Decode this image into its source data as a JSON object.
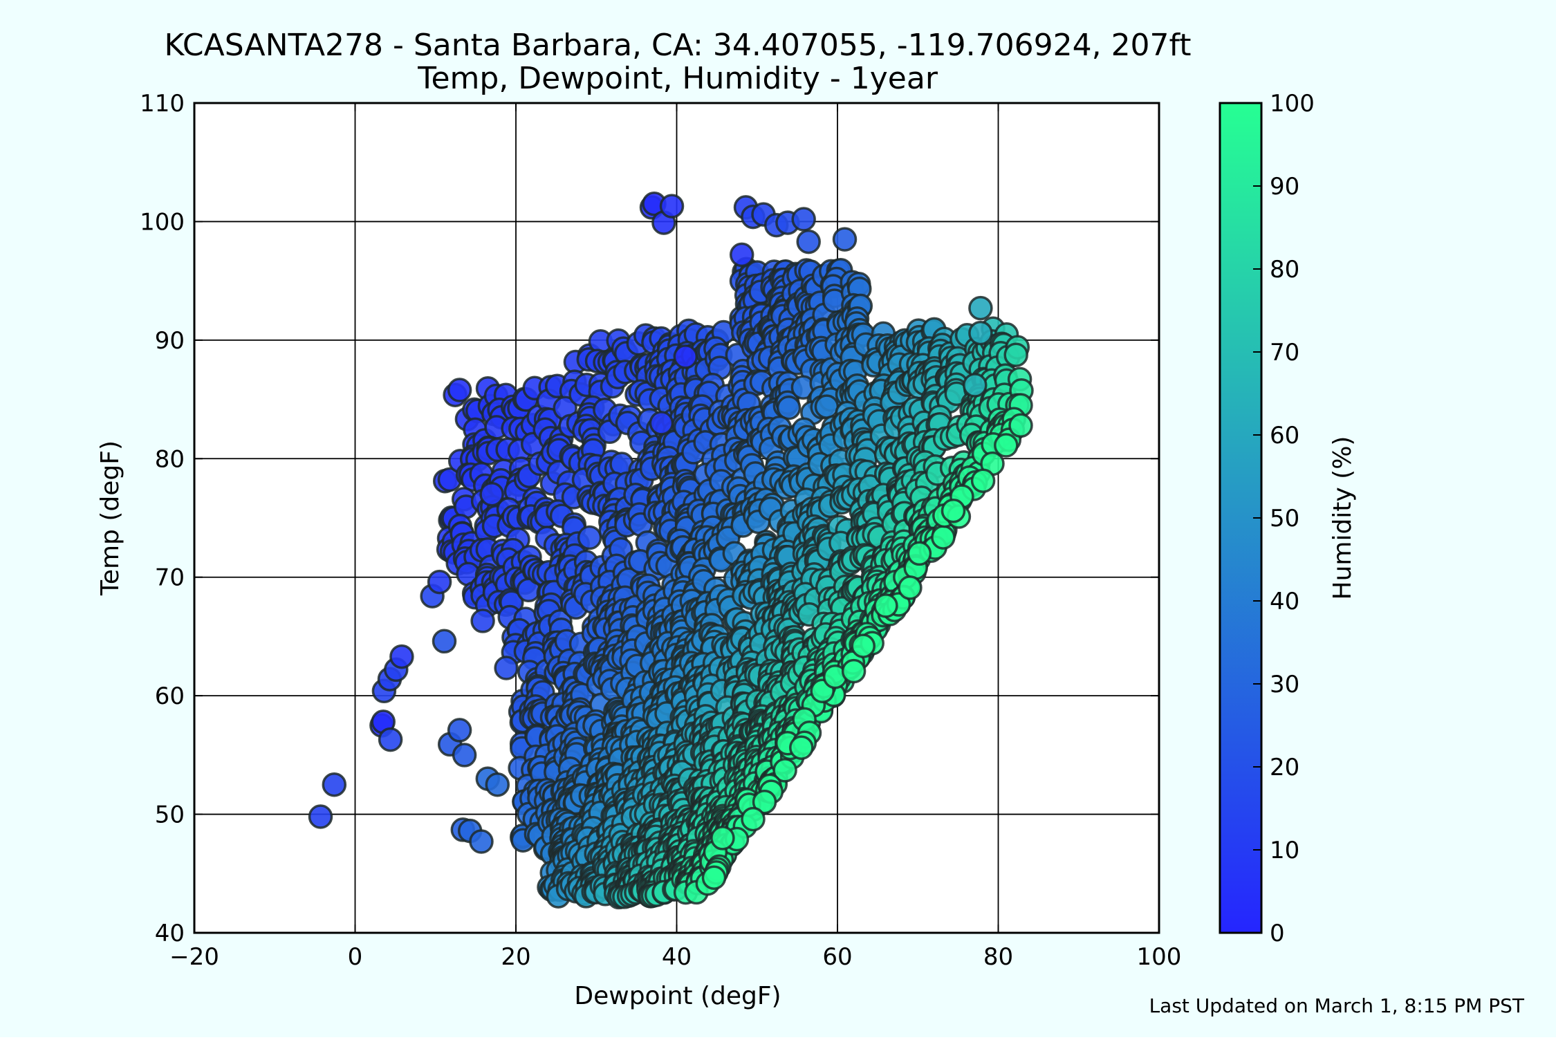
{
  "page": {
    "background": "#efffff",
    "footer": "Last Updated on March 1, 8:15 PM PST"
  },
  "chart_data": {
    "type": "scatter",
    "title": "KCASANTA278 - Santa Barbara, CA: 34.407055, -119.706924, 207ft",
    "subtitle": "Temp, Dewpoint, Humidity - 1year",
    "xlabel": "Dewpoint (degF)",
    "ylabel": "Temp (degF)",
    "xlim": [
      -20,
      100
    ],
    "ylim": [
      40,
      110
    ],
    "xticks": [
      -20,
      0,
      20,
      40,
      60,
      80,
      100
    ],
    "xtick_labels": [
      "−20",
      "0",
      "20",
      "40",
      "60",
      "80",
      "100"
    ],
    "yticks": [
      40,
      50,
      60,
      70,
      80,
      90,
      100,
      110
    ],
    "ytick_labels": [
      "40",
      "50",
      "60",
      "70",
      "80",
      "90",
      "100",
      "110"
    ],
    "grid": true,
    "color_by": "humidity",
    "colorbar": {
      "label": "Humidity (%)",
      "range": [
        0,
        100
      ],
      "ticks": [
        0,
        10,
        20,
        30,
        40,
        50,
        60,
        70,
        80,
        90,
        100
      ],
      "colormap": [
        "#2525ff",
        "#26ff93"
      ]
    },
    "marker_edge_color": "#1f2a2a",
    "points": [
      {
        "x": -4.3,
        "y": 49.8,
        "h": 13
      },
      {
        "x": -2.6,
        "y": 52.5,
        "h": 14
      },
      {
        "x": 3.3,
        "y": 57.5,
        "h": 4
      },
      {
        "x": 3.5,
        "y": 57.8,
        "h": 4
      },
      {
        "x": 4.4,
        "y": 56.3,
        "h": 15
      },
      {
        "x": 3.6,
        "y": 60.4,
        "h": 14
      },
      {
        "x": 4.3,
        "y": 61.4,
        "h": 13
      },
      {
        "x": 5.1,
        "y": 62.2,
        "h": 13
      },
      {
        "x": 5.8,
        "y": 63.3,
        "h": 8
      },
      {
        "x": 9.6,
        "y": 68.4,
        "h": 16
      },
      {
        "x": 10.5,
        "y": 69.6,
        "h": 10
      },
      {
        "x": 11.1,
        "y": 64.6,
        "h": 22
      },
      {
        "x": 11.8,
        "y": 55.9,
        "h": 24
      },
      {
        "x": 13.0,
        "y": 57.1,
        "h": 23
      },
      {
        "x": 13.6,
        "y": 55.0,
        "h": 25
      },
      {
        "x": 13.4,
        "y": 48.7,
        "h": 27
      },
      {
        "x": 14.3,
        "y": 48.6,
        "h": 30
      },
      {
        "x": 15.7,
        "y": 47.7,
        "h": 30
      },
      {
        "x": 16.5,
        "y": 53.0,
        "h": 32
      },
      {
        "x": 17.0,
        "y": 77.0,
        "h": 10
      },
      {
        "x": 17.7,
        "y": 52.5,
        "h": 32
      },
      {
        "x": 36.9,
        "y": 101.2,
        "h": 5
      },
      {
        "x": 37.2,
        "y": 101.5,
        "h": 4
      },
      {
        "x": 38.4,
        "y": 99.9,
        "h": 6
      },
      {
        "x": 39.4,
        "y": 101.3,
        "h": 6
      },
      {
        "x": 48.6,
        "y": 101.2,
        "h": 12
      },
      {
        "x": 49.5,
        "y": 100.4,
        "h": 14
      },
      {
        "x": 50.8,
        "y": 100.6,
        "h": 15
      },
      {
        "x": 52.4,
        "y": 99.7,
        "h": 17
      },
      {
        "x": 53.8,
        "y": 99.9,
        "h": 18
      },
      {
        "x": 55.8,
        "y": 100.2,
        "h": 19
      },
      {
        "x": 56.4,
        "y": 98.3,
        "h": 22
      },
      {
        "x": 48.1,
        "y": 97.2,
        "h": 8
      },
      {
        "x": 60.9,
        "y": 98.5,
        "h": 26
      },
      {
        "x": 77.8,
        "y": 92.7,
        "h": 60
      },
      {
        "x": 77.8,
        "y": 90.6,
        "h": 62
      },
      {
        "x": 77.1,
        "y": 86.2,
        "h": 66
      },
      {
        "x": 82.8,
        "y": 82.8,
        "h": 96
      },
      {
        "x": 63.2,
        "y": 64.2,
        "h": 100
      },
      {
        "x": 41.1,
        "y": 88.6,
        "h": 5
      },
      {
        "x": 38.1,
        "y": 83.0,
        "h": 10
      }
    ]
  }
}
